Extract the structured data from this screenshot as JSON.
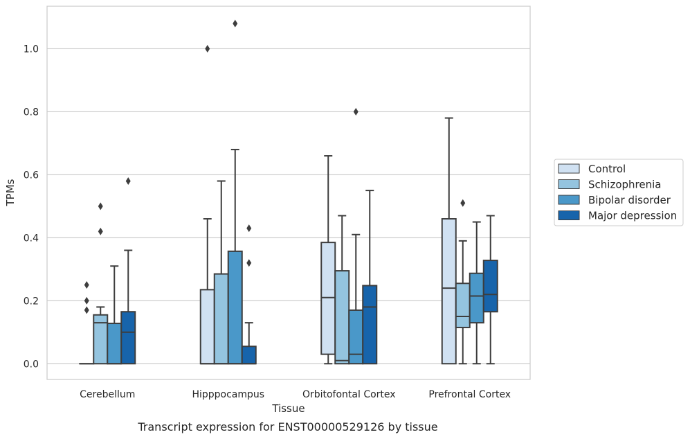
{
  "chart_data": {
    "type": "box",
    "xlabel": "Tissue",
    "ylabel": "TPMs",
    "caption": "Transcript expression for ENST00000529126 by tissue",
    "ylim": [
      -0.05,
      1.135
    ],
    "yticks": [
      0.0,
      0.2,
      0.4,
      0.6,
      0.8,
      1.0
    ],
    "ytick_labels": [
      "0.0",
      "0.2",
      "0.4",
      "0.6",
      "0.8",
      "1.0"
    ],
    "grid": "horizontal",
    "legend_position": "right",
    "categories": [
      "Cerebellum",
      "Hipppocampus",
      "Orbitofontal Cortex",
      "Prefrontal Cortex"
    ],
    "series": [
      {
        "name": "Control",
        "color": "#d0e1f2",
        "boxes": [
          {
            "whisker_low": 0.0,
            "q1": 0.0,
            "median": 0.0,
            "q3": 0.0,
            "whisker_high": 0.0,
            "outliers": [
              0.17,
              0.2,
              0.25
            ]
          },
          {
            "whisker_low": 0.0,
            "q1": 0.0,
            "median": 0.0,
            "q3": 0.235,
            "whisker_high": 0.46,
            "outliers": [
              1.0
            ]
          },
          {
            "whisker_low": 0.0,
            "q1": 0.03,
            "median": 0.21,
            "q3": 0.385,
            "whisker_high": 0.66,
            "outliers": []
          },
          {
            "whisker_low": 0.0,
            "q1": 0.0,
            "median": 0.24,
            "q3": 0.46,
            "whisker_high": 0.78,
            "outliers": []
          }
        ]
      },
      {
        "name": "Schizophrenia",
        "color": "#94c4df",
        "boxes": [
          {
            "whisker_low": 0.0,
            "q1": 0.0,
            "median": 0.13,
            "q3": 0.155,
            "whisker_high": 0.18,
            "outliers": [
              0.42,
              0.5
            ]
          },
          {
            "whisker_low": 0.0,
            "q1": 0.0,
            "median": 0.0,
            "q3": 0.285,
            "whisker_high": 0.58,
            "outliers": []
          },
          {
            "whisker_low": 0.0,
            "q1": 0.0,
            "median": 0.01,
            "q3": 0.295,
            "whisker_high": 0.47,
            "outliers": []
          },
          {
            "whisker_low": 0.0,
            "q1": 0.115,
            "median": 0.15,
            "q3": 0.255,
            "whisker_high": 0.39,
            "outliers": [
              0.51
            ]
          }
        ]
      },
      {
        "name": "Bipolar disorder",
        "color": "#4a98c9",
        "boxes": [
          {
            "whisker_low": 0.0,
            "q1": 0.0,
            "median": 0.0,
            "q3": 0.128,
            "whisker_high": 0.31,
            "outliers": []
          },
          {
            "whisker_low": 0.0,
            "q1": 0.0,
            "median": 0.0,
            "q3": 0.357,
            "whisker_high": 0.68,
            "outliers": [
              1.08
            ]
          },
          {
            "whisker_low": 0.0,
            "q1": 0.0,
            "median": 0.03,
            "q3": 0.17,
            "whisker_high": 0.41,
            "outliers": [
              0.8
            ]
          },
          {
            "whisker_low": 0.0,
            "q1": 0.13,
            "median": 0.215,
            "q3": 0.287,
            "whisker_high": 0.45,
            "outliers": []
          }
        ]
      },
      {
        "name": "Major depression",
        "color": "#1764ab",
        "boxes": [
          {
            "whisker_low": 0.0,
            "q1": 0.0,
            "median": 0.1,
            "q3": 0.165,
            "whisker_high": 0.36,
            "outliers": [
              0.58
            ]
          },
          {
            "whisker_low": 0.0,
            "q1": 0.0,
            "median": 0.0,
            "q3": 0.055,
            "whisker_high": 0.13,
            "outliers": [
              0.32,
              0.43
            ]
          },
          {
            "whisker_low": 0.0,
            "q1": 0.0,
            "median": 0.18,
            "q3": 0.248,
            "whisker_high": 0.55,
            "outliers": []
          },
          {
            "whisker_low": 0.0,
            "q1": 0.165,
            "median": 0.22,
            "q3": 0.328,
            "whisker_high": 0.47,
            "outliers": []
          }
        ]
      }
    ]
  }
}
